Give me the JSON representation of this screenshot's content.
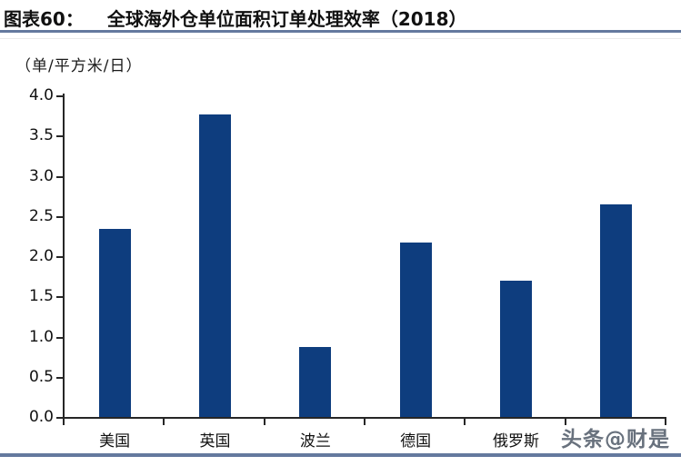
{
  "header": {
    "figure_label": "图表60：",
    "title": "全球海外仓单位面积订单处理效率（2018）"
  },
  "unit_label": "（单/平方米/日）",
  "watermark": "头条@财是",
  "colors": {
    "bar": "#0E3D7E",
    "rule": "#64799E",
    "axis": "#262626",
    "watermark": "#5C6673"
  },
  "chart_data": {
    "type": "bar",
    "categories": [
      "美国",
      "英国",
      "波兰",
      "德国",
      "俄罗斯",
      ""
    ],
    "values": [
      2.34,
      3.76,
      0.87,
      2.17,
      1.7,
      2.64
    ],
    "title": "全球海外仓单位面积订单处理效率（2018）",
    "xlabel": "",
    "ylabel": "（单/平方米/日）",
    "ylim": [
      0.0,
      4.0
    ],
    "ytick_step": 0.5,
    "ytick_labels": [
      "0.0",
      "0.5",
      "1.0",
      "1.5",
      "2.0",
      "2.5",
      "3.0",
      "3.5",
      "4.0"
    ],
    "grid": false,
    "legend": null,
    "bar_color": "#0E3D7E",
    "last_category_hidden_by_watermark": true
  }
}
